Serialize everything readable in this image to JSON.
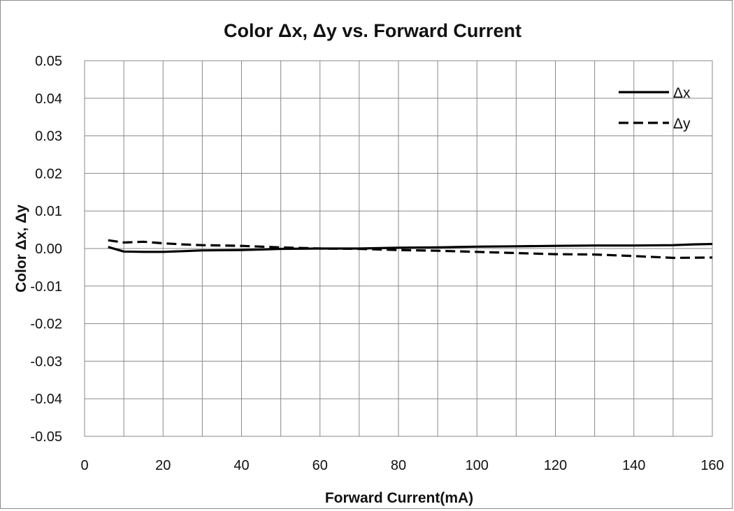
{
  "chart_data": {
    "type": "line",
    "title": "Color Δx, Δy vs. Forward Current",
    "xlabel": "Forward Current(mA)",
    "ylabel": "Color Δx,  Δy",
    "xlim": [
      0,
      160
    ],
    "ylim": [
      -0.05,
      0.05
    ],
    "x_ticks": [
      0,
      20,
      40,
      60,
      80,
      100,
      120,
      140,
      160
    ],
    "x_tick_labels": [
      "0",
      "20",
      "40",
      "60",
      "80",
      "100",
      "120",
      "140",
      "160"
    ],
    "y_ticks": [
      0.05,
      0.04,
      0.03,
      0.02,
      0.01,
      0.0,
      -0.01,
      -0.02,
      -0.03,
      -0.04,
      -0.05
    ],
    "y_tick_labels": [
      "0.05",
      "0.04",
      "0.03",
      "0.02",
      "0.01",
      "0.00",
      "-0.01",
      "-0.02",
      "-0.03",
      "-0.04",
      "-0.05"
    ],
    "grid": true,
    "legend_position": "top-right",
    "series": [
      {
        "name": "Δx",
        "style": "solid",
        "color": "#000000",
        "x": [
          6,
          10,
          15,
          20,
          25,
          30,
          40,
          50,
          60,
          70,
          80,
          90,
          95,
          100,
          110,
          120,
          130,
          140,
          150,
          155,
          160
        ],
        "y": [
          0.0004,
          -0.0008,
          -0.0009,
          -0.0009,
          -0.0007,
          -0.0005,
          -0.0004,
          -0.0001,
          0.0,
          0.0,
          0.0002,
          0.0003,
          0.0004,
          0.0005,
          0.0006,
          0.0007,
          0.0008,
          0.0008,
          0.0009,
          0.0011,
          0.0012
        ]
      },
      {
        "name": "Δy",
        "style": "dashed",
        "color": "#000000",
        "x": [
          6,
          10,
          15,
          20,
          25,
          30,
          40,
          50,
          60,
          70,
          80,
          90,
          100,
          110,
          120,
          130,
          140,
          150,
          160
        ],
        "y": [
          0.0022,
          0.0016,
          0.0018,
          0.0014,
          0.0011,
          0.0009,
          0.0007,
          0.0003,
          0.0,
          -0.0001,
          -0.0004,
          -0.0006,
          -0.0009,
          -0.0012,
          -0.0015,
          -0.0016,
          -0.002,
          -0.0025,
          -0.0024
        ]
      }
    ]
  }
}
